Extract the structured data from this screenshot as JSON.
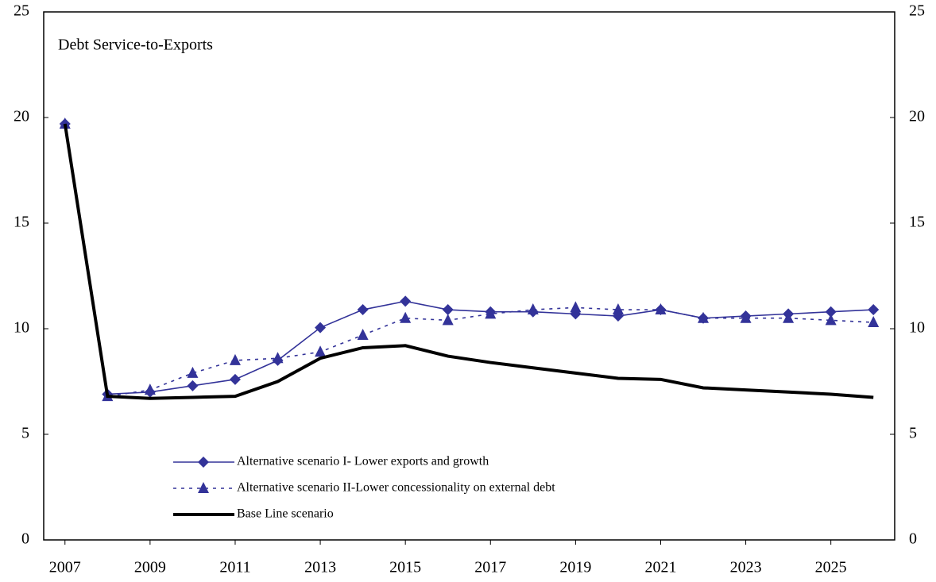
{
  "chart_data": {
    "type": "line",
    "annotation": "Debt Service-to-Exports",
    "x": [
      2007,
      2008,
      2009,
      2010,
      2011,
      2012,
      2013,
      2014,
      2015,
      2016,
      2017,
      2018,
      2019,
      2020,
      2021,
      2022,
      2023,
      2024,
      2025,
      2026
    ],
    "xlim": [
      2006.5,
      2026.5
    ],
    "xticks": [
      2007,
      2009,
      2011,
      2013,
      2015,
      2017,
      2019,
      2021,
      2023,
      2025
    ],
    "ylim": [
      0,
      25
    ],
    "yticks": [
      0,
      5,
      10,
      15,
      20,
      25
    ],
    "y2lim": [
      0,
      25
    ],
    "y2ticks": [
      0,
      5,
      10,
      15,
      20,
      25
    ],
    "legend": "lower left",
    "series": [
      {
        "name": "Alternative scenario I- Lower exports and growth",
        "color": "#333399",
        "marker": "diamond",
        "dash": "solid",
        "values": [
          19.7,
          6.9,
          7.0,
          7.3,
          7.6,
          8.5,
          10.05,
          10.9,
          11.3,
          10.9,
          10.8,
          10.8,
          10.7,
          10.6,
          10.9,
          10.5,
          10.6,
          10.7,
          10.8,
          10.9
        ]
      },
      {
        "name": "Alternative scenario II-Lower concessionality on external debt",
        "color": "#333399",
        "marker": "triangle",
        "dash": "dotted",
        "values": [
          19.7,
          6.8,
          7.1,
          7.9,
          8.5,
          8.6,
          8.9,
          9.7,
          10.5,
          10.4,
          10.7,
          10.9,
          11.0,
          10.9,
          10.9,
          10.5,
          10.5,
          10.5,
          10.4,
          10.3
        ]
      },
      {
        "name": "Base Line scenario",
        "color": "#000000",
        "marker": "none",
        "dash": "solid",
        "values": [
          19.7,
          6.8,
          6.7,
          6.75,
          6.8,
          7.5,
          8.6,
          9.1,
          9.2,
          8.7,
          8.4,
          8.15,
          7.9,
          7.65,
          7.6,
          7.2,
          7.1,
          7.0,
          6.9,
          6.75
        ]
      }
    ]
  }
}
